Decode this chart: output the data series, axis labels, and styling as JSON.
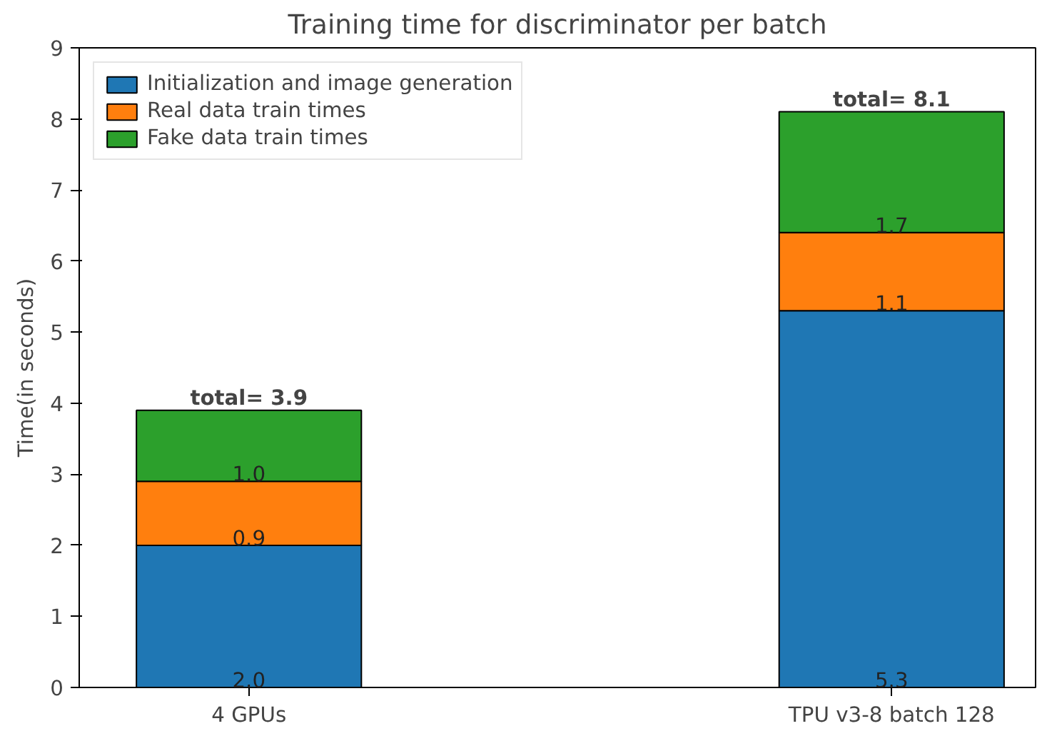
{
  "chart_data": {
    "type": "bar",
    "stacked": true,
    "title": "Training time for discriminator per batch",
    "ylabel": "Time(in seconds)",
    "categories": [
      "4 GPUs",
      "TPU v3-8 batch 128"
    ],
    "series": [
      {
        "name": "Initialization and image generation",
        "color": "#1f77b4",
        "values": [
          2.0,
          5.3
        ],
        "value_labels": [
          "2.0",
          "5.3"
        ]
      },
      {
        "name": "Real data train times",
        "color": "#ff7f0e",
        "values": [
          0.9,
          1.1
        ],
        "value_labels": [
          "0.9",
          "1.1"
        ]
      },
      {
        "name": "Fake data train times",
        "color": "#2ca02c",
        "values": [
          1.0,
          1.7
        ],
        "value_labels": [
          "1.0",
          "1.7"
        ]
      }
    ],
    "totals": [
      "total= 3.9",
      "total= 8.1"
    ],
    "ylim": [
      0,
      9
    ],
    "yticks": [
      0,
      1,
      2,
      3,
      4,
      5,
      6,
      7,
      8,
      9
    ],
    "grid": false,
    "legend": "top left"
  }
}
